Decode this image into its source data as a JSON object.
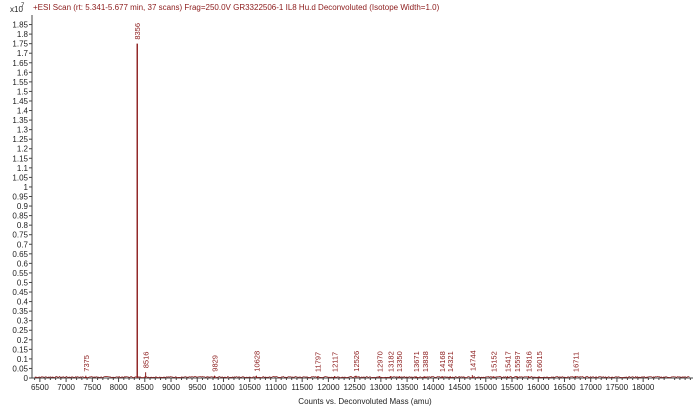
{
  "chart_data": {
    "type": "line",
    "title": "+ESI Scan (rt: 5.341-5.677 min, 37 scans) Frag=250.0V GR3322506-1 IL8 Hu.d  Deconvoluted (Isotope Width=1.0)",
    "y_exponent_label": "x10",
    "y_exponent_power": "7",
    "xlabel": "Counts vs. Deconvoluted Mass (amu)",
    "ylabel": "",
    "xlim": [
      6350,
      18950
    ],
    "ylim": [
      0,
      1.9
    ],
    "x_ticks": [
      "6500",
      "7000",
      "7500",
      "8000",
      "8500",
      "9000",
      "9500",
      "10000",
      "10500",
      "11000",
      "11500",
      "12000",
      "12500",
      "13000",
      "13500",
      "14000",
      "14500",
      "15000",
      "15500",
      "16000",
      "16500",
      "17000",
      "17500",
      "18000"
    ],
    "y_ticks": [
      "0",
      "0.05",
      "0.1",
      "0.15",
      "0.2",
      "0.25",
      "0.3",
      "0.35",
      "0.4",
      "0.45",
      "0.5",
      "0.55",
      "0.6",
      "0.65",
      "0.7",
      "0.75",
      "0.8",
      "0.85",
      "0.9",
      "0.95",
      "1",
      "1.05",
      "1.1",
      "1.15",
      "1.2",
      "1.25",
      "1.3",
      "1.35",
      "1.4",
      "1.45",
      "1.5",
      "1.55",
      "1.6",
      "1.65",
      "1.7",
      "1.75",
      "1.8",
      "1.85"
    ],
    "grid": false,
    "series_color": "#8b1a1a",
    "peaks": [
      {
        "x": 7375,
        "y": 0.012,
        "label": "7375"
      },
      {
        "x": 8356,
        "y": 1.75,
        "label": "8356"
      },
      {
        "x": 8516,
        "y": 0.03,
        "label": "8516"
      },
      {
        "x": 9829,
        "y": 0.012,
        "label": "9829"
      },
      {
        "x": 10628,
        "y": 0.012,
        "label": "10628"
      },
      {
        "x": 11797,
        "y": 0.01,
        "label": "11797"
      },
      {
        "x": 12117,
        "y": 0.01,
        "label": "12117"
      },
      {
        "x": 12526,
        "y": 0.012,
        "label": "12526"
      },
      {
        "x": 12970,
        "y": 0.01,
        "label": "12970"
      },
      {
        "x": 13182,
        "y": 0.01,
        "label": "13182"
      },
      {
        "x": 13350,
        "y": 0.01,
        "label": "13350"
      },
      {
        "x": 13671,
        "y": 0.01,
        "label": "13671"
      },
      {
        "x": 13838,
        "y": 0.01,
        "label": "13838"
      },
      {
        "x": 14168,
        "y": 0.01,
        "label": "14168"
      },
      {
        "x": 14321,
        "y": 0.01,
        "label": "14321"
      },
      {
        "x": 14744,
        "y": 0.015,
        "label": "14744"
      },
      {
        "x": 15152,
        "y": 0.01,
        "label": "15152"
      },
      {
        "x": 15417,
        "y": 0.01,
        "label": "15417"
      },
      {
        "x": 15597,
        "y": 0.01,
        "label": "15597"
      },
      {
        "x": 15816,
        "y": 0.01,
        "label": "15816"
      },
      {
        "x": 16015,
        "y": 0.01,
        "label": "16015"
      },
      {
        "x": 16711,
        "y": 0.01,
        "label": "16711"
      }
    ]
  }
}
